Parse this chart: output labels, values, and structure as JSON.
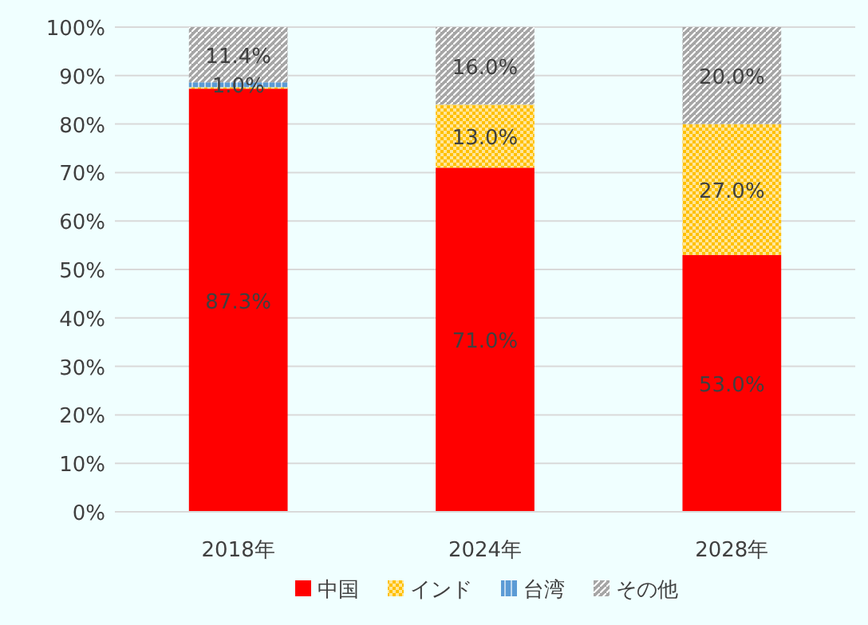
{
  "chart_data": {
    "type": "bar",
    "stacked": true,
    "categories": [
      "2018年",
      "2024年",
      "2028年"
    ],
    "series": [
      {
        "name": "中国",
        "color": "#ff0000",
        "values": [
          87.3,
          71.0,
          53.0
        ],
        "value_labels": [
          "87.3%",
          "71.0%",
          "53.0%"
        ]
      },
      {
        "name": "インド",
        "color": "#ffc000",
        "values": [
          0.3,
          13.0,
          27.0
        ],
        "value_labels": [
          null,
          "13.0%",
          "27.0%"
        ]
      },
      {
        "name": "台湾",
        "color": "#5b9bd5",
        "values": [
          1.0,
          0,
          0
        ],
        "value_labels": [
          "1.0%",
          null,
          null
        ]
      },
      {
        "name": "その他",
        "color": "#a5a5a5",
        "values": [
          11.4,
          16.0,
          20.0
        ],
        "value_labels": [
          "11.4%",
          "16.0%",
          "20.0%"
        ]
      }
    ],
    "ylim": [
      0,
      100
    ],
    "yticks": [
      {
        "value": 0,
        "label": "0%"
      },
      {
        "value": 10,
        "label": "10%"
      },
      {
        "value": 20,
        "label": "20%"
      },
      {
        "value": 30,
        "label": "30%"
      },
      {
        "value": 40,
        "label": "40%"
      },
      {
        "value": 50,
        "label": "50%"
      },
      {
        "value": 60,
        "label": "60%"
      },
      {
        "value": 70,
        "label": "70%"
      },
      {
        "value": 80,
        "label": "80%"
      },
      {
        "value": 90,
        "label": "90%"
      },
      {
        "value": 100,
        "label": "100%"
      }
    ],
    "grid": "y",
    "legend": "bottom"
  }
}
